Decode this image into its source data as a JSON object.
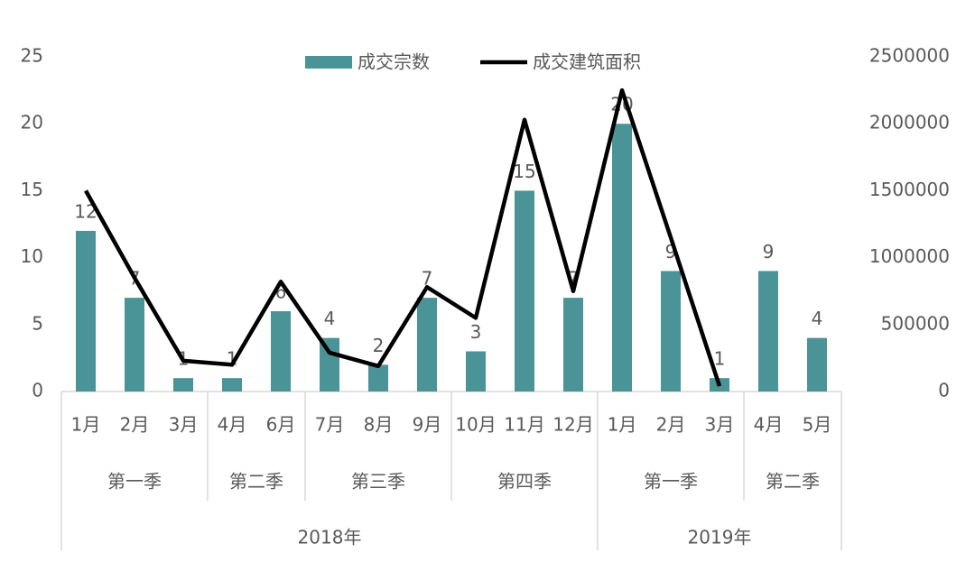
{
  "chart_data": {
    "type": "bar_line",
    "categories": [
      "1月",
      "2月",
      "3月",
      "4月",
      "6月",
      "7月",
      "8月",
      "9月",
      "10月",
      "11月",
      "12月",
      "1月",
      "2月",
      "3月",
      "4月",
      "5月"
    ],
    "years": [
      {
        "label": "2018年",
        "quarters": [
          {
            "label": "第一季",
            "size": 3
          },
          {
            "label": "第二季",
            "size": 2
          },
          {
            "label": "第三季",
            "size": 3
          },
          {
            "label": "第四季",
            "size": 3
          }
        ]
      },
      {
        "label": "2019年",
        "quarters": [
          {
            "label": "第一季",
            "size": 3
          },
          {
            "label": "第二季",
            "size": 2
          }
        ]
      }
    ],
    "series": [
      {
        "name": "成交宗数",
        "type": "bar",
        "color": "#4a9396",
        "values": [
          12,
          7,
          1,
          1,
          6,
          4,
          2,
          7,
          3,
          15,
          7,
          20,
          9,
          1,
          9,
          4
        ]
      },
      {
        "name": "成交建筑面积",
        "type": "line",
        "axis": "y2",
        "color": "#000000",
        "values": [
          1500000,
          850000,
          230000,
          200000,
          820000,
          290000,
          190000,
          780000,
          550000,
          2030000,
          750000,
          2250000,
          1150000,
          40000,
          null,
          null
        ]
      }
    ],
    "ylim": [
      0,
      25
    ],
    "yticks": [
      0,
      5,
      10,
      15,
      20,
      25
    ],
    "y2lim": [
      0,
      2500000
    ],
    "y2ticks": [
      0,
      500000,
      1000000,
      1500000,
      2000000,
      2500000
    ],
    "legend": "top"
  }
}
